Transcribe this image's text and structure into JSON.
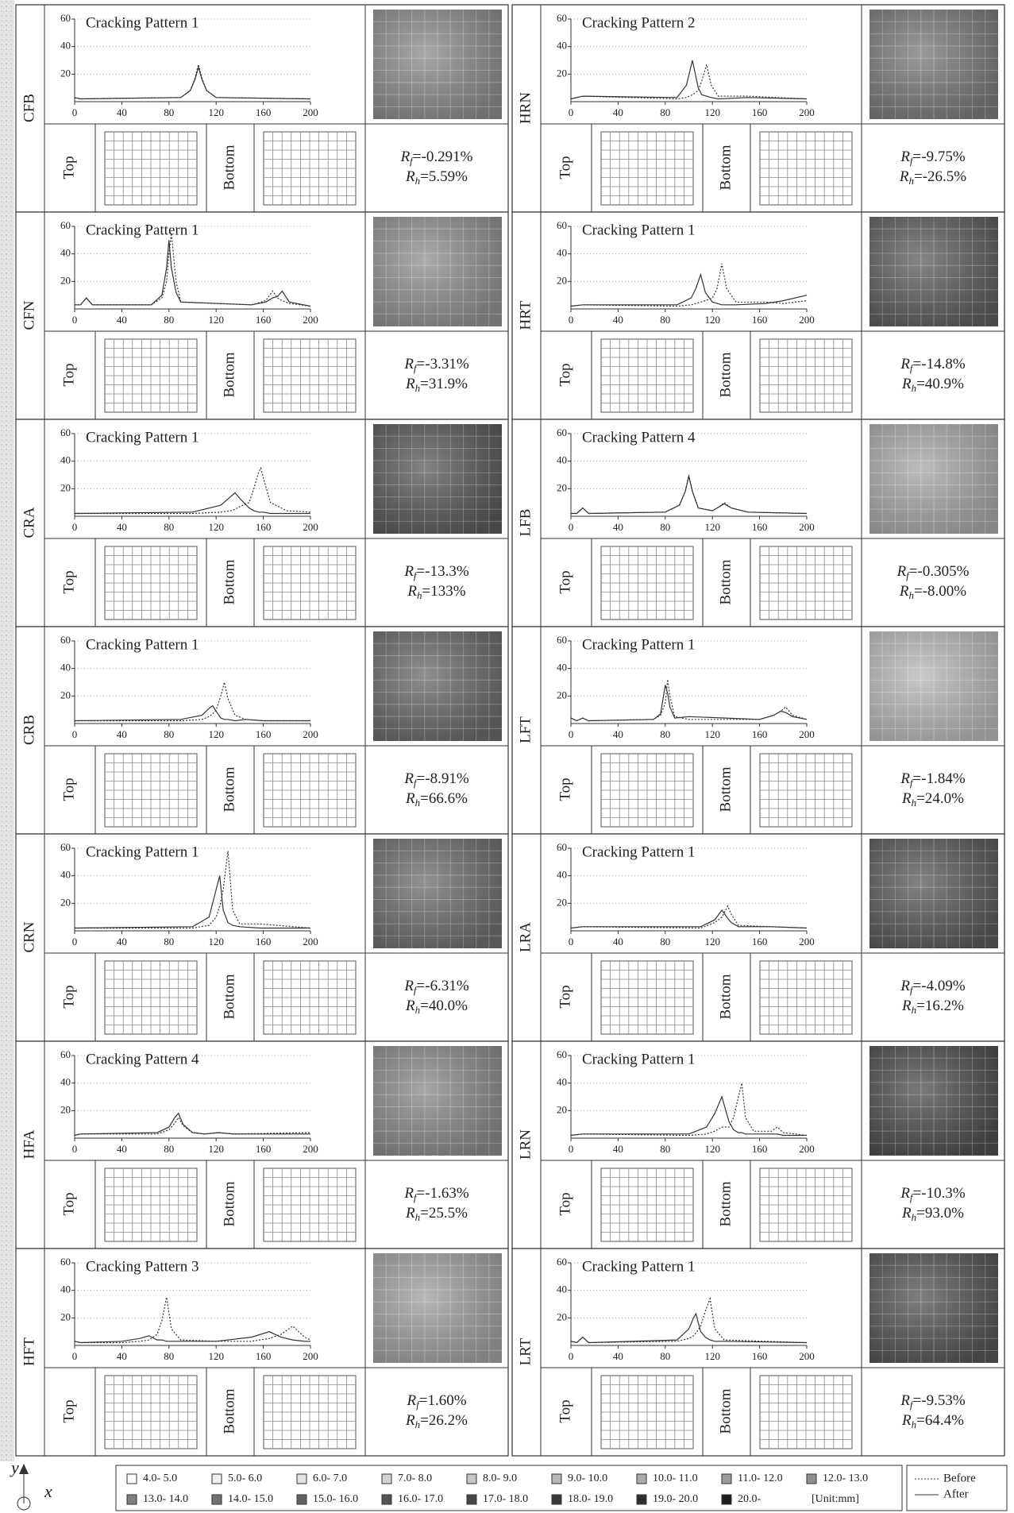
{
  "chart_axes": {
    "xlim": [
      0,
      200
    ],
    "xticks": [
      0,
      40,
      80,
      120,
      160,
      200
    ],
    "ylim": [
      0,
      60
    ],
    "yticks": [
      20,
      40,
      60
    ],
    "grid": true
  },
  "symbols": {
    "R": "R",
    "f": "f",
    "h": "h",
    "eq": "="
  },
  "top_label": "Top",
  "bottom_label": "Bottom",
  "panels": [
    {
      "label": "CFB",
      "shade": "#8c8c8c",
      "chart": {
        "type": "line",
        "title": "Cracking Pattern 1",
        "x": [
          0,
          5,
          90,
          98,
          102,
          105,
          108,
          112,
          120,
          200
        ],
        "series": [
          {
            "values": [
              3,
              2,
              3,
              8,
              17,
              27,
              17,
              8,
              3,
              2
            ]
          },
          {
            "values": [
              3,
              2,
              3,
              8,
              16,
              25,
              16,
              8,
              3,
              2
            ]
          }
        ]
      },
      "rf": "-0.291%",
      "rh": "5.59%"
    },
    {
      "label": "CFN",
      "shade": "#909090",
      "chart": {
        "type": "line",
        "title": "Cracking Pattern 1",
        "x": [
          0,
          5,
          10,
          15,
          65,
          74,
          78,
          80,
          82,
          86,
          90,
          150,
          162,
          168,
          172,
          176,
          182,
          200
        ],
        "series": [
          {
            "values": [
              3,
              3,
              8,
              3,
              3,
              8,
              20,
              40,
              55,
              20,
              5,
              3,
              6,
              13,
              8,
              6,
              4,
              2
            ]
          },
          {
            "values": [
              3,
              3,
              8,
              3,
              3,
              10,
              30,
              50,
              30,
              12,
              5,
              3,
              5,
              8,
              9,
              13,
              5,
              2
            ]
          }
        ]
      },
      "rf": "-3.31%",
      "rh": "31.9%"
    },
    {
      "label": "CRA",
      "shade": "#5a5a5a",
      "chart": {
        "type": "line",
        "title": "Cracking Pattern 1",
        "x": [
          0,
          100,
          124,
          132,
          136,
          140,
          148,
          152,
          156,
          158,
          160,
          166,
          180,
          200
        ],
        "series": [
          {
            "values": [
              2,
              2,
              3,
              4,
              5,
              7,
              10,
              20,
              32,
              35,
              28,
              10,
              4,
              3
            ]
          },
          {
            "values": [
              2,
              3,
              8,
              14,
              17,
              13,
              6,
              4,
              3,
              3,
              3,
              2,
              2,
              2
            ]
          }
        ]
      },
      "rf": "-13.3%",
      "rh": "133%"
    },
    {
      "label": "CRB",
      "shade": "#6a6a6a",
      "chart": {
        "type": "line",
        "title": "Cracking Pattern 1",
        "x": [
          0,
          90,
          108,
          114,
          117,
          120,
          124,
          127,
          130,
          136,
          145,
          160,
          200
        ],
        "series": [
          {
            "values": [
              2,
              2,
              3,
              5,
              7,
              10,
              20,
              30,
              18,
              6,
              3,
              2,
              2
            ]
          },
          {
            "values": [
              2,
              3,
              6,
              11,
              13,
              9,
              4,
              3,
              3,
              2,
              3,
              2,
              2
            ]
          }
        ]
      },
      "rf": "-8.91%",
      "rh": "66.6%"
    },
    {
      "label": "CRN",
      "shade": "#6e6e6e",
      "chart": {
        "type": "line",
        "title": "Cracking Pattern 1",
        "x": [
          0,
          100,
          114,
          120,
          123,
          126,
          130,
          134,
          140,
          157,
          200
        ],
        "series": [
          {
            "values": [
              2,
              2,
              4,
              10,
              18,
              30,
              58,
              15,
              5,
              5,
              2
            ]
          },
          {
            "values": [
              2,
              3,
              10,
              30,
              40,
              15,
              6,
              4,
              3,
              2,
              2
            ]
          }
        ]
      },
      "rf": "-6.31%",
      "rh": "40.0%"
    },
    {
      "label": "HFA",
      "shade": "#8a8a8a",
      "chart": {
        "type": "line",
        "title": "Cracking Pattern 4",
        "x": [
          0,
          5,
          70,
          80,
          85,
          88,
          92,
          100,
          110,
          122,
          135,
          200
        ],
        "series": [
          {
            "values": [
              2,
              3,
              3,
              6,
              11,
              15,
              9,
              4,
              3,
              4,
              3,
              4
            ]
          },
          {
            "values": [
              2,
              3,
              4,
              8,
              15,
              18,
              10,
              4,
              3,
              4,
              3,
              3
            ]
          }
        ]
      },
      "rf": "-1.63%",
      "rh": "25.5%"
    },
    {
      "label": "HFT",
      "shade": "#a0a0a0",
      "chart": {
        "type": "line",
        "title": "Cracking Pattern 3",
        "x": [
          0,
          5,
          40,
          55,
          63,
          70,
          74,
          78,
          82,
          90,
          120,
          150,
          165,
          175,
          185,
          195,
          200
        ],
        "series": [
          {
            "values": [
              3,
              2,
              2,
              3,
              4,
              8,
              18,
              35,
              12,
              4,
              3,
              3,
              5,
              8,
              14,
              6,
              4
            ]
          },
          {
            "values": [
              3,
              2,
              3,
              5,
              7,
              4,
              4,
              3,
              3,
              3,
              3,
              6,
              10,
              6,
              4,
              3,
              3
            ]
          }
        ]
      },
      "rf": "1.60%",
      "rh": "26.2%"
    },
    {
      "label": "HRN",
      "shade": "#7a7a7a",
      "chart": {
        "type": "line",
        "title": "Cracking Pattern 2",
        "x": [
          0,
          10,
          90,
          98,
          103,
          108,
          111,
          115,
          119,
          125,
          150,
          200
        ],
        "series": [
          {
            "values": [
              2,
              4,
              2,
              3,
              5,
              8,
              15,
              27,
              12,
              4,
              4,
              2
            ]
          },
          {
            "values": [
              2,
              4,
              3,
              12,
              30,
              10,
              5,
              4,
              3,
              2,
              3,
              2
            ]
          }
        ]
      },
      "rf": "-9.75%",
      "rh": "-26.5%"
    },
    {
      "label": "HRT",
      "shade": "#5e5e5e",
      "chart": {
        "type": "line",
        "title": "Cracking Pattern 1",
        "x": [
          0,
          10,
          90,
          102,
          106,
          110,
          114,
          120,
          124,
          128,
          132,
          140,
          165,
          180,
          200
        ],
        "series": [
          {
            "values": [
              2,
              3,
              2,
              3,
              4,
              5,
              6,
              8,
              15,
              33,
              15,
              5,
              5,
              4,
              6
            ]
          },
          {
            "values": [
              2,
              3,
              3,
              8,
              15,
              25,
              12,
              5,
              4,
              3,
              3,
              3,
              4,
              6,
              10
            ]
          }
        ]
      },
      "rf": "-14.8%",
      "rh": "40.9%"
    },
    {
      "label": "LFB",
      "shade": "#a8a8a8",
      "chart": {
        "type": "line",
        "title": "Cracking Pattern 4",
        "x": [
          0,
          5,
          10,
          15,
          80,
          92,
          97,
          100,
          103,
          108,
          120,
          126,
          130,
          136,
          150,
          200
        ],
        "series": [
          {
            "values": [
              2,
              2,
              6,
              2,
              3,
              8,
              18,
              30,
              18,
              6,
              4,
              7,
              10,
              6,
              3,
              2
            ]
          },
          {
            "values": [
              2,
              2,
              6,
              2,
              3,
              8,
              18,
              29,
              18,
              6,
              4,
              7,
              9,
              6,
              3,
              2
            ]
          }
        ]
      },
      "rf": "-0.305%",
      "rh": "-8.00%"
    },
    {
      "label": "LFT",
      "shade": "#b8b8b8",
      "chart": {
        "type": "line",
        "title": "Cracking Pattern 1",
        "x": [
          0,
          5,
          10,
          15,
          70,
          76,
          80,
          82,
          84,
          88,
          100,
          160,
          172,
          178,
          182,
          188,
          200
        ],
        "series": [
          {
            "values": [
              4,
              2,
              4,
              2,
              3,
              6,
              15,
              32,
              20,
              5,
              3,
              3,
              6,
              9,
              12,
              6,
              3
            ]
          },
          {
            "values": [
              4,
              2,
              4,
              2,
              3,
              7,
              28,
              22,
              12,
              4,
              5,
              3,
              6,
              9,
              8,
              5,
              3
            ]
          }
        ]
      },
      "rf": "-1.84%",
      "rh": "24.0%"
    },
    {
      "label": "LRA",
      "shade": "#5a5a5a",
      "chart": {
        "type": "line",
        "title": "Cracking Pattern 1",
        "x": [
          0,
          10,
          110,
          122,
          128,
          133,
          136,
          142,
          170,
          200
        ],
        "series": [
          {
            "values": [
              2,
              3,
              2,
              6,
              10,
              18,
              12,
              4,
              3,
              2
            ]
          },
          {
            "values": [
              2,
              3,
              3,
              8,
              15,
              9,
              6,
              3,
              3,
              2
            ]
          }
        ]
      },
      "rf": "-4.09%",
      "rh": "16.2%"
    },
    {
      "label": "LRN",
      "shade": "#4e4e4e",
      "chart": {
        "type": "line",
        "title": "Cracking Pattern 1",
        "x": [
          0,
          10,
          100,
          115,
          122,
          128,
          134,
          138,
          142,
          145,
          148,
          155,
          170,
          175,
          180,
          200
        ],
        "series": [
          {
            "values": [
              2,
              3,
              2,
              3,
              5,
              8,
              8,
              15,
              30,
              40,
              15,
              5,
              5,
              8,
              4,
              2
            ]
          },
          {
            "values": [
              2,
              3,
              3,
              8,
              18,
              30,
              12,
              6,
              4,
              4,
              3,
              3,
              3,
              3,
              2,
              2
            ]
          }
        ]
      },
      "rf": "-10.3%",
      "rh": "93.0%"
    },
    {
      "label": "LRT",
      "shade": "#555555",
      "chart": {
        "type": "line",
        "title": "Cracking Pattern 1",
        "x": [
          0,
          5,
          10,
          15,
          90,
          100,
          104,
          106,
          110,
          114,
          118,
          122,
          130,
          200
        ],
        "series": [
          {
            "values": [
              3,
              2,
              6,
              2,
              3,
              5,
              7,
              9,
              14,
              25,
              34,
              12,
              4,
              2
            ]
          },
          {
            "values": [
              3,
              2,
              6,
              2,
              4,
              12,
              20,
              23,
              10,
              6,
              4,
              3,
              3,
              2
            ]
          }
        ]
      },
      "rf": "-9.53%",
      "rh": "64.4%"
    }
  ],
  "legend": {
    "series": [
      {
        "name": "Before",
        "color": "#333333",
        "dash": "2 2"
      },
      {
        "name": "After",
        "color": "#333333",
        "dash": "none"
      }
    ],
    "ranges": [
      {
        "label": "4.0- 5.0",
        "color": "#ffffff"
      },
      {
        "label": "5.0- 6.0",
        "color": "#f0f0f0"
      },
      {
        "label": "6.0- 7.0",
        "color": "#e2e2e2"
      },
      {
        "label": "7.0- 8.0",
        "color": "#d4d4d4"
      },
      {
        "label": "8.0- 9.0",
        "color": "#c6c6c6"
      },
      {
        "label": "9.0- 10.0",
        "color": "#b8b8b8"
      },
      {
        "label": "10.0- 11.0",
        "color": "#aaaaaa"
      },
      {
        "label": "11.0- 12.0",
        "color": "#9c9c9c"
      },
      {
        "label": "12.0- 13.0",
        "color": "#8e8e8e"
      },
      {
        "label": "13.0- 14.0",
        "color": "#808080"
      },
      {
        "label": "14.0- 15.0",
        "color": "#727272"
      },
      {
        "label": "15.0- 16.0",
        "color": "#646464"
      },
      {
        "label": "16.0- 17.0",
        "color": "#565656"
      },
      {
        "label": "17.0- 18.0",
        "color": "#484848"
      },
      {
        "label": "18.0- 19.0",
        "color": "#3a3a3a"
      },
      {
        "label": "19.0- 20.0",
        "color": "#2c2c2c"
      },
      {
        "label": "20.0-",
        "color": "#1e1e1e"
      }
    ],
    "unit": "[Unit:mm]"
  },
  "axis_symbol": {
    "y": "y",
    "x": "x"
  }
}
